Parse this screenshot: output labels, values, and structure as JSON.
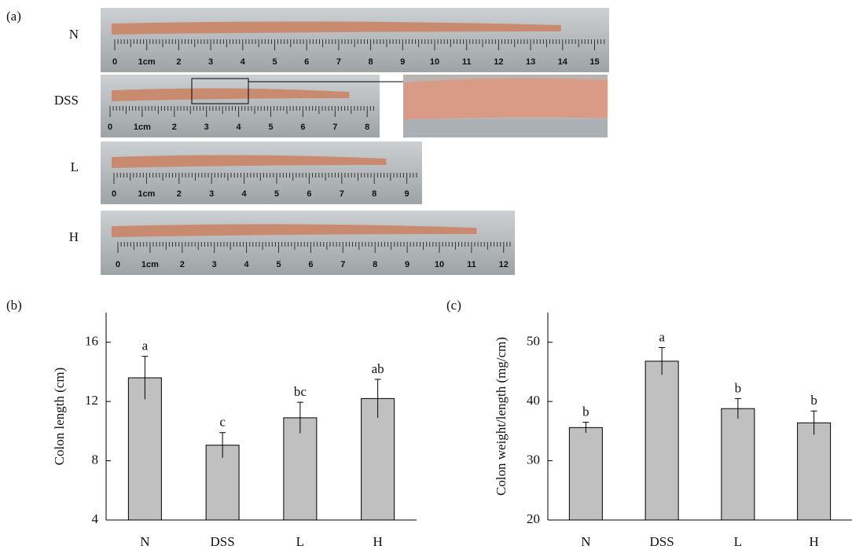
{
  "panel_a": {
    "label": "(a)",
    "rows": [
      {
        "name": "N",
        "ruler": [
          "0",
          "1cm",
          "2",
          "3",
          "4",
          "5",
          "6",
          "7",
          "8",
          "9",
          "10",
          "11",
          "12",
          "13",
          "14",
          "15"
        ]
      },
      {
        "name": "DSS",
        "ruler": [
          "0",
          "1cm",
          "2",
          "3",
          "4",
          "5",
          "6",
          "7",
          "8"
        ]
      },
      {
        "name": "L",
        "ruler": [
          "0",
          "1cm",
          "2",
          "3",
          "4",
          "5",
          "6",
          "7",
          "8",
          "9"
        ]
      },
      {
        "name": "H",
        "ruler": [
          "0",
          "1cm",
          "2",
          "3",
          "4",
          "5",
          "6",
          "7",
          "8",
          "9",
          "10",
          "11",
          "12"
        ]
      }
    ]
  },
  "chart_data": [
    {
      "type": "bar",
      "panel": "(b)",
      "y_label": "Colon length (cm)",
      "categories": [
        "N",
        "DSS",
        "L",
        "H"
      ],
      "values": [
        13.6,
        9.05,
        10.9,
        12.2
      ],
      "errors": [
        1.45,
        0.85,
        1.05,
        1.3
      ],
      "labels": [
        "a",
        "c",
        "bc",
        "ab"
      ],
      "color": "#c0c0c0",
      "ylim": [
        4,
        18
      ],
      "yticks": [
        4,
        8,
        12,
        16
      ]
    },
    {
      "type": "bar",
      "panel": "(c)",
      "y_label": "Colon weight/length (mg/cm)",
      "categories": [
        "N",
        "DSS",
        "L",
        "H"
      ],
      "values": [
        35.6,
        46.8,
        38.8,
        36.4
      ],
      "errors": [
        0.9,
        2.3,
        1.7,
        2.0
      ],
      "labels": [
        "b",
        "a",
        "b",
        "b"
      ],
      "color": "#c0c0c0",
      "ylim": [
        20,
        55
      ],
      "yticks": [
        20,
        30,
        40,
        50
      ]
    }
  ]
}
